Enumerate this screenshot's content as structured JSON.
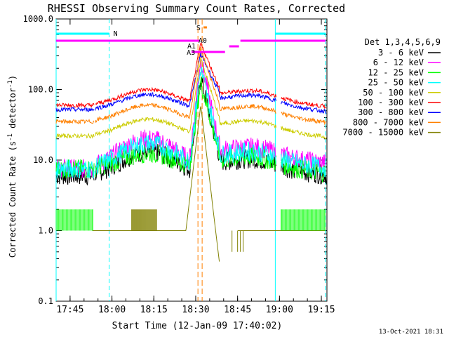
{
  "chart_data": {
    "type": "line",
    "title": "RHESSI Observing Summary Count Rates, Corrected",
    "xlabel": "Start Time (12-Jan-09 17:40:02)",
    "ylabel_main": "Corrected Count Rate (s",
    "ylabel_sup1": "-1",
    "ylabel_mid": " detector",
    "ylabel_sup2": "-1",
    "ylabel_end": ")",
    "yscale": "log",
    "ylim": [
      0.1,
      1000
    ],
    "xlim_minutes": [
      0,
      97
    ],
    "yticks": [
      {
        "value": 0.1,
        "label": "0.1"
      },
      {
        "value": 1,
        "label": "1.0"
      },
      {
        "value": 10,
        "label": "10.0"
      },
      {
        "value": 100,
        "label": "100.0"
      },
      {
        "value": 1000,
        "label": "1000.0"
      }
    ],
    "xticks": [
      {
        "minute": 5,
        "label": "17:45"
      },
      {
        "minute": 20,
        "label": "18:00"
      },
      {
        "minute": 35,
        "label": "18:15"
      },
      {
        "minute": 50,
        "label": "18:30"
      },
      {
        "minute": 65,
        "label": "18:45"
      },
      {
        "minute": 80,
        "label": "19:00"
      },
      {
        "minute": 95,
        "label": "19:15"
      }
    ],
    "legend_title": "Det 1,3,4,5,6,9",
    "legend_position": "right",
    "series": [
      {
        "name": "3 - 6 keV",
        "color": "#000000",
        "pre": 6.0,
        "hump": 13.0,
        "post": 7.5,
        "peak": 150
      },
      {
        "name": "6 - 12 keV",
        "color": "#ff00ff",
        "pre": 7.5,
        "hump": 20.0,
        "post": 11.0,
        "peak": 280
      },
      {
        "name": "12 - 25 keV",
        "color": "#00ff00",
        "pre": 7.5,
        "hump": 12.5,
        "post": 8.0,
        "peak": 130
      },
      {
        "name": "25 - 50 keV",
        "color": "#00ffff",
        "pre": 7.5,
        "hump": 17.0,
        "post": 9.5,
        "peak": 200
      },
      {
        "name": "50 - 100 keV",
        "color": "#cccc00",
        "pre": 22.0,
        "hump": 38.0,
        "post": 26.0,
        "peak": 280
      },
      {
        "name": "100 - 300 keV",
        "color": "#ff0000",
        "pre": 60.0,
        "hump": 100.0,
        "post": 70.0,
        "peak": 450
      },
      {
        "name": "300 - 800 keV",
        "color": "#0000ff",
        "pre": 52.0,
        "hump": 85.0,
        "post": 60.0,
        "peak": 320
      },
      {
        "name": "800 - 7000 keV",
        "color": "#ff8000",
        "pre": 35.0,
        "hump": 60.0,
        "post": 42.0,
        "peak": 380
      },
      {
        "name": "7000 - 15000 keV",
        "color": "#808000",
        "pre": 1.0,
        "hump": 1.0,
        "post": 1.0,
        "peak": 60
      }
    ],
    "flag_labels": [
      {
        "label": "N",
        "color": "#00ffff",
        "minute": 20.5
      },
      {
        "label": "S",
        "color": "#ff8000",
        "minute": 51.0
      },
      {
        "label": "A0",
        "color": "#ff00ff",
        "minute": 52.5
      },
      {
        "label": "A1",
        "color": "#ff00ff",
        "minute": 48.5
      },
      {
        "label": "A3",
        "color": "#ff00ff",
        "minute": 48.3
      }
    ],
    "timestamp": "13-Oct-2021 18:31"
  }
}
